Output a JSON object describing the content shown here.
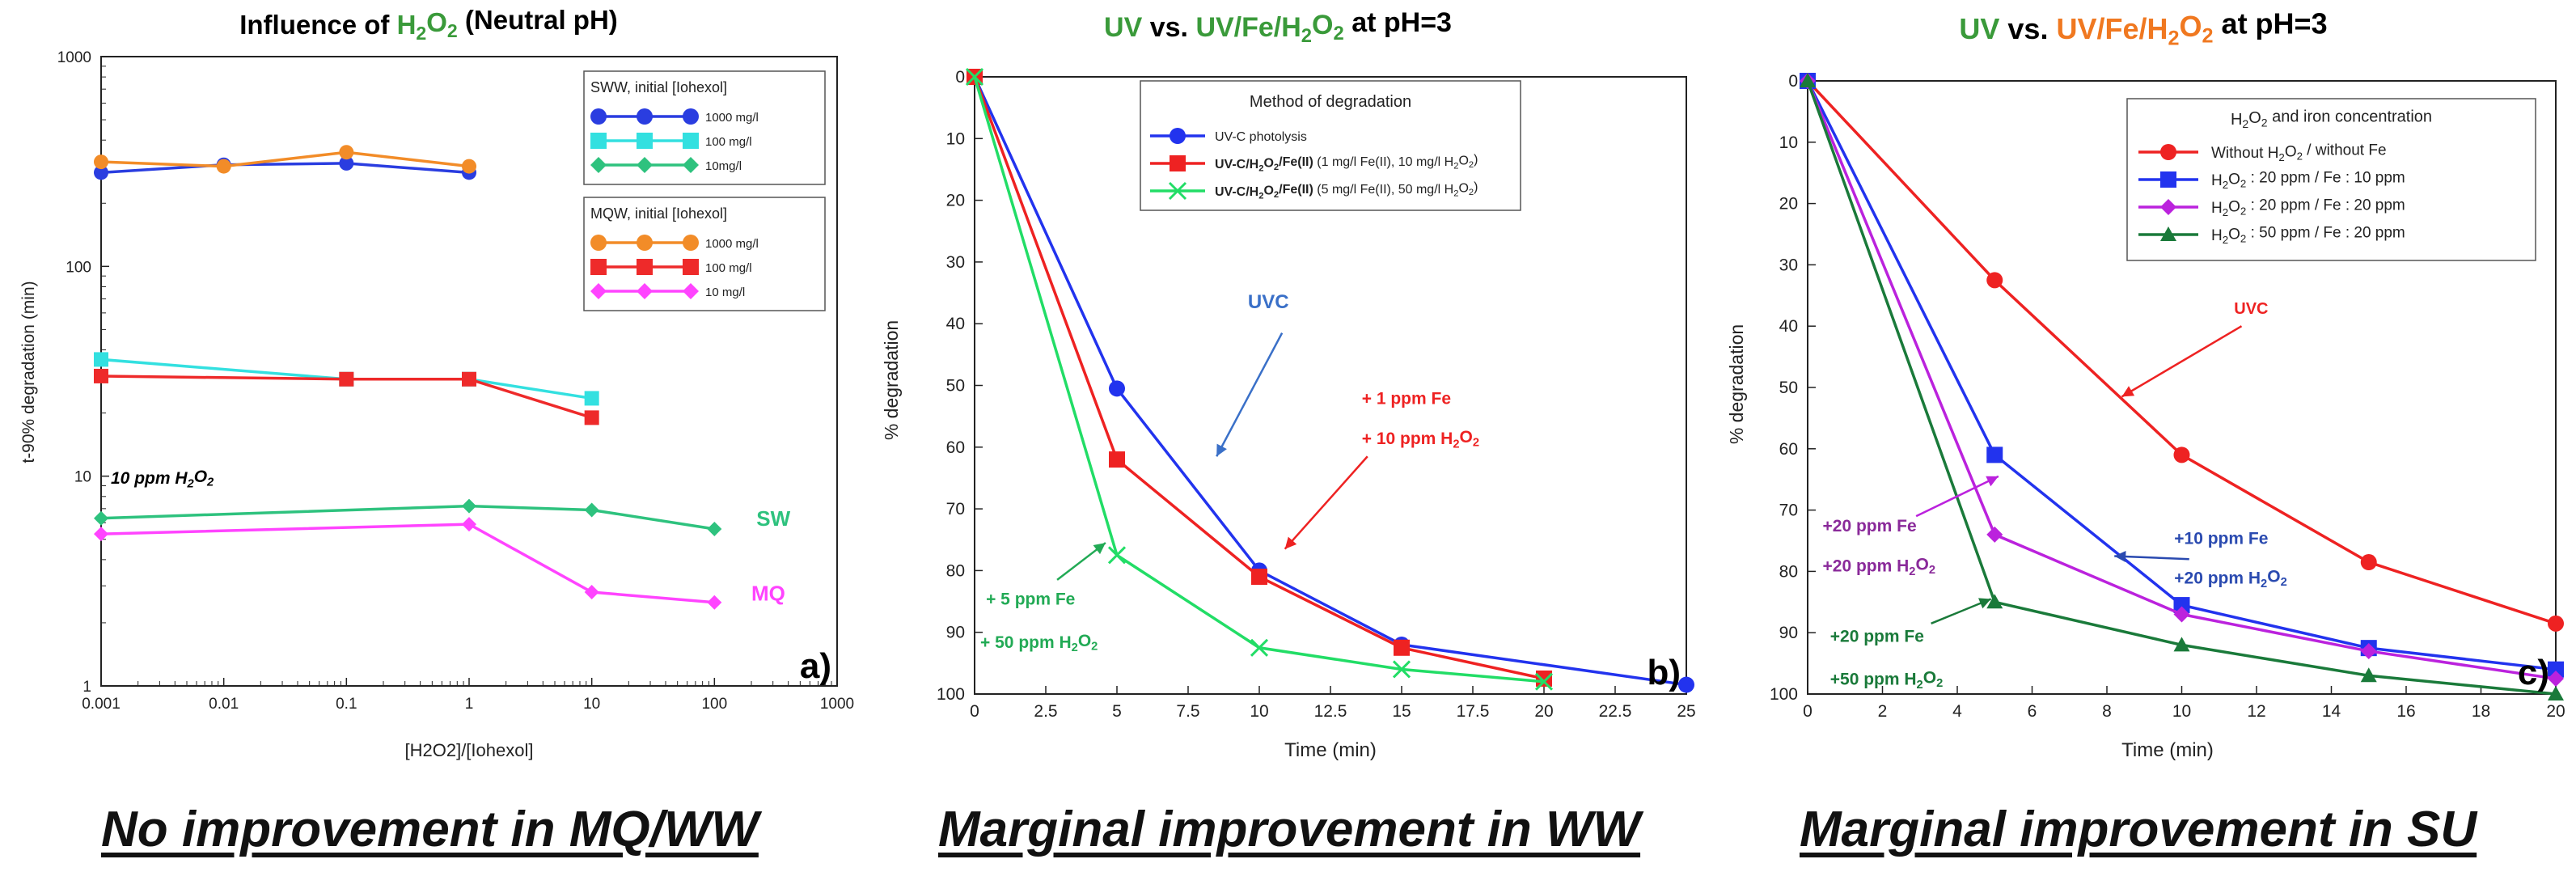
{
  "captions": {
    "a": "No improvement in MQ/WW",
    "b": "Marginal improvement in WW",
    "c": "Marginal improvement in SU"
  },
  "chart_data": [
    {
      "id": "a",
      "type": "line",
      "title": "Influence of H2O2 (Neutral pH)",
      "title_parts": [
        {
          "t": "Influence of ",
          "c": "#000000"
        },
        {
          "t": "H",
          "c": "#3a9a3a"
        },
        {
          "t": "2",
          "c": "#3a9a3a",
          "sub": true
        },
        {
          "t": "O",
          "c": "#3a9a3a"
        },
        {
          "t": "2",
          "c": "#3a9a3a",
          "sub": true
        },
        {
          "t": " (Neutral pH)",
          "c": "#000000"
        }
      ],
      "xlabel": "[H2O2]/[Iohexol]",
      "ylabel": "t-90% degradation (min)",
      "xscale": "log",
      "yscale": "log",
      "xlim": [
        0.001,
        1000
      ],
      "ylim": [
        1,
        1000
      ],
      "xticks": [
        0.001,
        0.01,
        0.1,
        1,
        10,
        100,
        1000
      ],
      "xtick_labels": [
        "0.001",
        "0.01",
        "0.1",
        "1",
        "10",
        "100",
        "1000"
      ],
      "yticks": [
        1,
        10,
        100,
        1000
      ],
      "ytick_labels": [
        "1",
        "10",
        "100",
        "1000"
      ],
      "panel_label": "a)",
      "legend_groups": [
        {
          "title": "SWW, initial [Iohexol]",
          "entries": [
            {
              "label": "1000 mg/l",
              "color": "#2a3de0",
              "marker": "circle"
            },
            {
              "label": "100 mg/l",
              "color": "#33e0e0",
              "marker": "square"
            },
            {
              "label": "10mg/l",
              "color": "#2ec27e",
              "marker": "diamond"
            }
          ]
        },
        {
          "title": "MQW, initial [Iohexol]",
          "entries": [
            {
              "label": "1000 mg/l",
              "color": "#f28c28",
              "marker": "circle"
            },
            {
              "label": "100 mg/l",
              "color": "#ee2a2a",
              "marker": "square"
            },
            {
              "label": "10 mg/l",
              "color": "#ff44ff",
              "marker": "diamond"
            }
          ]
        }
      ],
      "series": [
        {
          "name": "SWW 1000 mg/l",
          "color": "#2a3de0",
          "marker": "circle",
          "x": [
            0.001,
            0.01,
            0.1,
            1
          ],
          "y": [
            280,
            305,
            310,
            280
          ]
        },
        {
          "name": "MQW 1000 mg/l",
          "color": "#f28c28",
          "marker": "circle",
          "x": [
            0.001,
            0.01,
            0.1,
            1
          ],
          "y": [
            315,
            300,
            350,
            300
          ]
        },
        {
          "name": "SWW 100 mg/l",
          "color": "#33e0e0",
          "marker": "square",
          "x": [
            0.001,
            0.1,
            1,
            10
          ],
          "y": [
            36,
            29,
            29,
            23.5
          ]
        },
        {
          "name": "MQW 100 mg/l",
          "color": "#ee2a2a",
          "marker": "square",
          "x": [
            0.001,
            0.1,
            1,
            10
          ],
          "y": [
            30,
            29,
            29,
            19
          ]
        },
        {
          "name": "SWW 10 mg/l",
          "color": "#2ec27e",
          "marker": "diamond",
          "x": [
            0.001,
            1,
            10,
            100
          ],
          "y": [
            6.3,
            7.2,
            6.9,
            5.6
          ]
        },
        {
          "name": "MQW 10 mg/l",
          "color": "#ff44ff",
          "marker": "diamond",
          "x": [
            0.001,
            1,
            10,
            100
          ],
          "y": [
            5.3,
            5.9,
            2.8,
            2.5
          ]
        }
      ],
      "annotations": [
        {
          "parts": [
            {
              "t": "10 ppm H"
            },
            {
              "t": "2",
              "sub": true
            },
            {
              "t": "O"
            },
            {
              "t": "2",
              "sub": true
            }
          ],
          "color": "#000000",
          "x": 0.0012,
          "y": 9.2,
          "italic": true,
          "size": 21
        },
        {
          "parts": [
            {
              "t": "SW"
            }
          ],
          "color": "#2ec27e",
          "x": 220,
          "y": 5.8,
          "size": 26
        },
        {
          "parts": [
            {
              "t": "MQ"
            }
          ],
          "color": "#ff44ff",
          "x": 200,
          "y": 2.55,
          "size": 26
        }
      ]
    },
    {
      "id": "b",
      "type": "line",
      "title": "UV vs. UV/Fe/H2O2 at pH=3",
      "title_parts": [
        {
          "t": "UV",
          "c": "#3a9a3a"
        },
        {
          "t": " vs. ",
          "c": "#000000"
        },
        {
          "t": "UV/Fe/H",
          "c": "#3a9a3a"
        },
        {
          "t": "2",
          "c": "#3a9a3a",
          "sub": true
        },
        {
          "t": "O",
          "c": "#3a9a3a"
        },
        {
          "t": "2",
          "c": "#3a9a3a",
          "sub": true
        },
        {
          "t": " at pH=3",
          "c": "#000000"
        }
      ],
      "xlabel": "Time (min)",
      "ylabel": "% degradation",
      "xlim": [
        0,
        25
      ],
      "ylim": [
        0,
        100
      ],
      "y_inverted": true,
      "xticks": [
        0,
        2.5,
        5,
        7.5,
        10,
        12.5,
        15,
        17.5,
        20,
        22.5,
        25
      ],
      "xtick_labels": [
        "0",
        "2.5",
        "5",
        "7.5",
        "10",
        "12.5",
        "15",
        "17.5",
        "20",
        "22.5",
        "25"
      ],
      "yticks": [
        0,
        10,
        20,
        30,
        40,
        50,
        60,
        70,
        80,
        90,
        100
      ],
      "ytick_labels": [
        "0",
        "10",
        "20",
        "30",
        "40",
        "50",
        "60",
        "70",
        "80",
        "90",
        "100"
      ],
      "panel_label": "b)",
      "legend_title": "Method of degradation",
      "series": [
        {
          "name": "UV-C photolysis",
          "legend_parts": [
            {
              "t": "UV-C photolysis"
            }
          ],
          "color": "#2233ee",
          "marker": "circle",
          "x": [
            0,
            5,
            10,
            15,
            25
          ],
          "y": [
            0,
            50.5,
            80,
            92,
            98.5
          ]
        },
        {
          "name": "UV-C/H2O2/Fe(II) (1 mg/l Fe(II), 10 mg/l H2O2)",
          "legend_parts": [
            {
              "t": "UV-C/H",
              "b": true
            },
            {
              "t": "2",
              "sub": true,
              "b": true
            },
            {
              "t": "O",
              "b": true
            },
            {
              "t": "2",
              "sub": true,
              "b": true
            },
            {
              "t": "/Fe(II)",
              "b": true
            },
            {
              "t": " (1 mg/l Fe(II), 10 mg/l H"
            },
            {
              "t": "2",
              "sub": true
            },
            {
              "t": "O"
            },
            {
              "t": "2",
              "sub": true
            },
            {
              "t": ")"
            }
          ],
          "color": "#ee2222",
          "marker": "square",
          "x": [
            0,
            5,
            10,
            15,
            20
          ],
          "y": [
            0,
            62,
            81,
            92.5,
            97.5
          ]
        },
        {
          "name": "UV-C/H2O2/Fe(II) (5 mg/l Fe(II), 50 mg/l H2O2)",
          "legend_parts": [
            {
              "t": "UV-C/H",
              "b": true
            },
            {
              "t": "2",
              "sub": true,
              "b": true
            },
            {
              "t": "O",
              "b": true
            },
            {
              "t": "2",
              "sub": true,
              "b": true
            },
            {
              "t": "/Fe(II)",
              "b": true
            },
            {
              "t": " (5 mg/l Fe(II), 50 mg/l H"
            },
            {
              "t": "2",
              "sub": true
            },
            {
              "t": "O"
            },
            {
              "t": "2",
              "sub": true
            },
            {
              "t": ")"
            }
          ],
          "color": "#22dd66",
          "marker": "x",
          "x": [
            0,
            5,
            10,
            15,
            20
          ],
          "y": [
            0,
            77.5,
            92.5,
            96,
            98
          ]
        }
      ],
      "annotations": [
        {
          "parts": [
            {
              "t": "UVC"
            }
          ],
          "color": "#3a70c8",
          "x": 9.6,
          "y": 37.5,
          "size": 24
        },
        {
          "parts": [
            {
              "t": "+ 1 ppm Fe"
            }
          ],
          "color": "#ee2222",
          "x": 13.6,
          "y": 53,
          "size": 21
        },
        {
          "parts": [
            {
              "t": "+ 10 ppm H"
            },
            {
              "t": "2",
              "sub": true
            },
            {
              "t": "O"
            },
            {
              "t": "2",
              "sub": true
            }
          ],
          "color": "#ee2222",
          "x": 13.6,
          "y": 59.5,
          "size": 21
        },
        {
          "parts": [
            {
              "t": "+ 5 ppm Fe"
            }
          ],
          "color": "#22aa55",
          "x": 0.4,
          "y": 85.5,
          "size": 21
        },
        {
          "parts": [
            {
              "t": "+ 50 ppm H"
            },
            {
              "t": "2",
              "sub": true
            },
            {
              "t": "O"
            },
            {
              "t": "2",
              "sub": true
            }
          ],
          "color": "#22aa55",
          "x": 0.2,
          "y": 92.5,
          "size": 21
        }
      ],
      "arrows": [
        {
          "color": "#3a70c8",
          "from": [
            10.8,
            41.5
          ],
          "to": [
            8.5,
            61.5
          ]
        },
        {
          "color": "#ee2222",
          "from": [
            13.8,
            61.5
          ],
          "to": [
            10.9,
            76.5
          ]
        },
        {
          "color": "#22aa55",
          "from": [
            2.9,
            81.5
          ],
          "to": [
            4.6,
            75.5
          ]
        }
      ]
    },
    {
      "id": "c",
      "type": "line",
      "title": "UV vs. UV/Fe/H2O2 at pH=3",
      "title_parts": [
        {
          "t": "UV",
          "c": "#3a9a3a"
        },
        {
          "t": " vs. ",
          "c": "#000000"
        },
        {
          "t": "UV/Fe/H",
          "c": "#f07820"
        },
        {
          "t": "2",
          "c": "#f07820",
          "sub": true
        },
        {
          "t": "O",
          "c": "#f07820"
        },
        {
          "t": "2",
          "c": "#f07820",
          "sub": true
        },
        {
          "t": " at pH=3",
          "c": "#000000"
        }
      ],
      "xlabel": "Time (min)",
      "ylabel": "% degradation",
      "xlim": [
        0,
        20
      ],
      "ylim": [
        0,
        100
      ],
      "y_inverted": true,
      "xticks": [
        0,
        2,
        4,
        6,
        8,
        10,
        12,
        14,
        16,
        18,
        20
      ],
      "xtick_labels": [
        "0",
        "2",
        "4",
        "6",
        "8",
        "10",
        "12",
        "14",
        "16",
        "18",
        "20"
      ],
      "yticks": [
        0,
        10,
        20,
        30,
        40,
        50,
        60,
        70,
        80,
        90,
        100
      ],
      "ytick_labels": [
        "0",
        "10",
        "20",
        "30",
        "40",
        "50",
        "60",
        "70",
        "80",
        "90",
        "100"
      ],
      "panel_label": "c)",
      "legend_title_parts": [
        {
          "t": "H"
        },
        {
          "t": "2",
          "sub": true
        },
        {
          "t": "O"
        },
        {
          "t": "2",
          "sub": true
        },
        {
          "t": " and iron concentration"
        }
      ],
      "series": [
        {
          "name": "Without H2O2 / without Fe",
          "legend_parts": [
            {
              "t": "Without H"
            },
            {
              "t": "2",
              "sub": true
            },
            {
              "t": "O"
            },
            {
              "t": "2",
              "sub": true
            },
            {
              "t": " / without Fe"
            }
          ],
          "color": "#ee2222",
          "marker": "circle",
          "x": [
            0,
            5,
            10,
            15,
            20
          ],
          "y": [
            0,
            32.5,
            61,
            78.5,
            88.5
          ]
        },
        {
          "name": "H2O2 : 20 ppm / Fe : 10 ppm",
          "legend_parts": [
            {
              "t": "H"
            },
            {
              "t": "2",
              "sub": true
            },
            {
              "t": "O"
            },
            {
              "t": "2",
              "sub": true
            },
            {
              "t": " : 20 ppm / Fe : 10 ppm"
            }
          ],
          "color": "#2233ee",
          "marker": "square",
          "x": [
            0,
            5,
            10,
            15,
            20
          ],
          "y": [
            0,
            61,
            85.5,
            92.5,
            96
          ]
        },
        {
          "name": "H2O2 : 20 ppm / Fe : 20 ppm",
          "legend_parts": [
            {
              "t": "H"
            },
            {
              "t": "2",
              "sub": true
            },
            {
              "t": "O"
            },
            {
              "t": "2",
              "sub": true
            },
            {
              "t": " : 20 ppm / Fe : 20 ppm"
            }
          ],
          "color": "#bb22dd",
          "marker": "diamond",
          "x": [
            0,
            5,
            10,
            15,
            20
          ],
          "y": [
            0,
            74,
            87,
            93,
            97.5
          ]
        },
        {
          "name": "H2O2 : 50 ppm / Fe : 20 ppm",
          "legend_parts": [
            {
              "t": "H"
            },
            {
              "t": "2",
              "sub": true
            },
            {
              "t": "O"
            },
            {
              "t": "2",
              "sub": true
            },
            {
              "t": " : 50 ppm / Fe : 20 ppm"
            }
          ],
          "color": "#1a7a3a",
          "marker": "triangle",
          "x": [
            0,
            5,
            10,
            15,
            20
          ],
          "y": [
            0,
            85,
            92,
            97,
            100
          ]
        }
      ],
      "annotations": [
        {
          "parts": [
            {
              "t": "UVC"
            }
          ],
          "color": "#ee2222",
          "x": 11.4,
          "y": 38,
          "size": 20
        },
        {
          "parts": [
            {
              "t": "+20 ppm Fe"
            }
          ],
          "color": "#8a2a9a",
          "x": 0.4,
          "y": 73.5,
          "size": 21
        },
        {
          "parts": [
            {
              "t": "+20 ppm H"
            },
            {
              "t": "2",
              "sub": true
            },
            {
              "t": "O"
            },
            {
              "t": "2",
              "sub": true
            }
          ],
          "color": "#8a2a9a",
          "x": 0.4,
          "y": 80,
          "size": 21
        },
        {
          "parts": [
            {
              "t": "+10 ppm Fe"
            }
          ],
          "color": "#2a4ab0",
          "x": 9.8,
          "y": 75.5,
          "size": 21
        },
        {
          "parts": [
            {
              "t": "+20 ppm H"
            },
            {
              "t": "2",
              "sub": true
            },
            {
              "t": "O"
            },
            {
              "t": "2",
              "sub": true
            }
          ],
          "color": "#2a4ab0",
          "x": 9.8,
          "y": 82,
          "size": 21
        },
        {
          "parts": [
            {
              "t": "+20 ppm Fe"
            }
          ],
          "color": "#1a7a3a",
          "x": 0.6,
          "y": 91.5,
          "size": 21
        },
        {
          "parts": [
            {
              "t": "+50 ppm H"
            },
            {
              "t": "2",
              "sub": true
            },
            {
              "t": "O"
            },
            {
              "t": "2",
              "sub": true
            }
          ],
          "color": "#1a7a3a",
          "x": 0.6,
          "y": 98.5,
          "size": 21
        }
      ],
      "arrows": [
        {
          "color": "#ee2222",
          "from": [
            11.6,
            40
          ],
          "to": [
            8.4,
            51.5
          ]
        },
        {
          "color": "#bb22dd",
          "from": [
            2.9,
            71
          ],
          "to": [
            5.1,
            64.5
          ]
        },
        {
          "color": "#2a4ab0",
          "from": [
            10.2,
            78
          ],
          "to": [
            8.2,
            77.5
          ]
        },
        {
          "color": "#1a7a3a",
          "from": [
            3.3,
            88.5
          ],
          "to": [
            4.9,
            84.5
          ]
        }
      ]
    }
  ]
}
